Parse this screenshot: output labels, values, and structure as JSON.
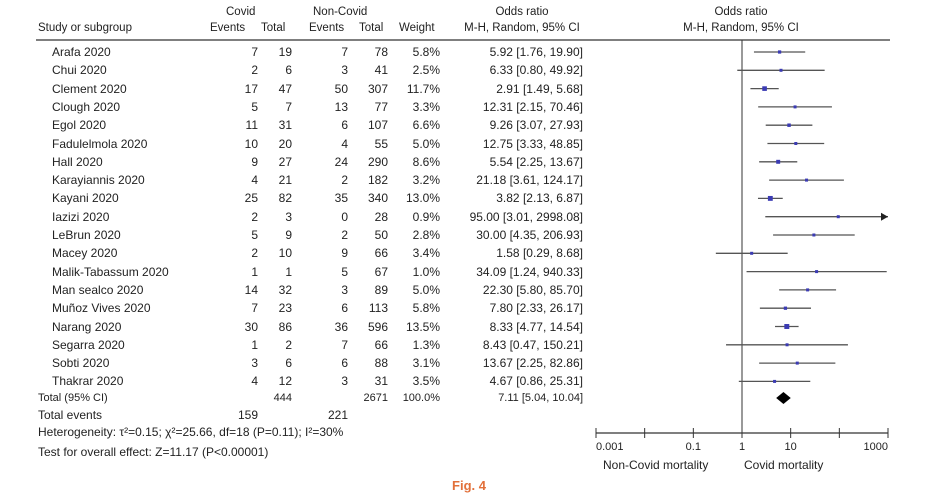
{
  "chart_data": {
    "type": "forest",
    "header": {
      "study_col": "Study or subgroup",
      "group1": "Covid",
      "group2": "Non-Covid",
      "events": "Events",
      "total": "Total",
      "weight": "Weight",
      "or_title": "Odds ratio",
      "or_sub": "M-H, Random, 95% CI"
    },
    "studies": [
      {
        "name": "Arafa 2020",
        "e1": "7",
        "t1": "19",
        "e2": "7",
        "t2": "78",
        "weight": "5.8%",
        "ci_text": "5.92 [1.76, 19.90]",
        "or": 5.92,
        "lo": 1.76,
        "hi": 19.9,
        "w": 5.8
      },
      {
        "name": "Chui 2020",
        "e1": "2",
        "t1": "6",
        "e2": "3",
        "t2": "41",
        "weight": "2.5%",
        "ci_text": "6.33 [0.80, 49.92]",
        "or": 6.33,
        "lo": 0.8,
        "hi": 49.92,
        "w": 2.5
      },
      {
        "name": "Clement 2020",
        "e1": "17",
        "t1": "47",
        "e2": "50",
        "t2": "307",
        "weight": "11.7%",
        "ci_text": "2.91 [1.49, 5.68]",
        "or": 2.91,
        "lo": 1.49,
        "hi": 5.68,
        "w": 11.7
      },
      {
        "name": "Clough 2020",
        "e1": "5",
        "t1": "7",
        "e2": "13",
        "t2": "77",
        "weight": "3.3%",
        "ci_text": "12.31 [2.15, 70.46]",
        "or": 12.31,
        "lo": 2.15,
        "hi": 70.46,
        "w": 3.3
      },
      {
        "name": "Egol 2020",
        "e1": "11",
        "t1": "31",
        "e2": "6",
        "t2": "107",
        "weight": "6.6%",
        "ci_text": "9.26 [3.07, 27.93]",
        "or": 9.26,
        "lo": 3.07,
        "hi": 27.93,
        "w": 6.6
      },
      {
        "name": "Fadulelmola 2020",
        "e1": "10",
        "t1": "20",
        "e2": "4",
        "t2": "55",
        "weight": "5.0%",
        "ci_text": "12.75 [3.33, 48.85]",
        "or": 12.75,
        "lo": 3.33,
        "hi": 48.85,
        "w": 5.0
      },
      {
        "name": "Hall 2020",
        "e1": "9",
        "t1": "27",
        "e2": "24",
        "t2": "290",
        "weight": "8.6%",
        "ci_text": "5.54 [2.25, 13.67]",
        "or": 5.54,
        "lo": 2.25,
        "hi": 13.67,
        "w": 8.6
      },
      {
        "name": "Karayiannis 2020",
        "e1": "4",
        "t1": "21",
        "e2": "2",
        "t2": "182",
        "weight": "3.2%",
        "ci_text": "21.18 [3.61, 124.17]",
        "or": 21.18,
        "lo": 3.61,
        "hi": 124.17,
        "w": 3.2
      },
      {
        "name": "Kayani 2020",
        "e1": "25",
        "t1": "82",
        "e2": "35",
        "t2": "340",
        "weight": "13.0%",
        "ci_text": "3.82 [2.13, 6.87]",
        "or": 3.82,
        "lo": 2.13,
        "hi": 6.87,
        "w": 13.0
      },
      {
        "name": "Iazizi 2020",
        "e1": "2",
        "t1": "3",
        "e2": "0",
        "t2": "28",
        "weight": "0.9%",
        "ci_text": "95.00 [3.01, 2998.08]",
        "or": 95.0,
        "lo": 3.01,
        "hi": 2998.08,
        "w": 0.9
      },
      {
        "name": "LeBrun 2020",
        "e1": "5",
        "t1": "9",
        "e2": "2",
        "t2": "50",
        "weight": "2.8%",
        "ci_text": "30.00 [4.35, 206.93]",
        "or": 30.0,
        "lo": 4.35,
        "hi": 206.93,
        "w": 2.8
      },
      {
        "name": "Macey 2020",
        "e1": "2",
        "t1": "10",
        "e2": "9",
        "t2": "66",
        "weight": "3.4%",
        "ci_text": "1.58 [0.29, 8.68]",
        "or": 1.58,
        "lo": 0.29,
        "hi": 8.68,
        "w": 3.4
      },
      {
        "name": "Malik-Tabassum 2020",
        "e1": "1",
        "t1": "1",
        "e2": "5",
        "t2": "67",
        "weight": "1.0%",
        "ci_text": "34.09 [1.24, 940.33]",
        "or": 34.09,
        "lo": 1.24,
        "hi": 940.33,
        "w": 1.0
      },
      {
        "name": "Man sealco 2020",
        "e1": "14",
        "t1": "32",
        "e2": "3",
        "t2": "89",
        "weight": "5.0%",
        "ci_text": "22.30 [5.80, 85.70]",
        "or": 22.3,
        "lo": 5.8,
        "hi": 85.7,
        "w": 5.0
      },
      {
        "name": "Muñoz Vives 2020",
        "e1": "7",
        "t1": "23",
        "e2": "6",
        "t2": "113",
        "weight": "5.8%",
        "ci_text": "7.80 [2.33, 26.17]",
        "or": 7.8,
        "lo": 2.33,
        "hi": 26.17,
        "w": 5.8
      },
      {
        "name": "Narang 2020",
        "e1": "30",
        "t1": "86",
        "e2": "36",
        "t2": "596",
        "weight": "13.5%",
        "ci_text": "8.33 [4.77, 14.54]",
        "or": 8.33,
        "lo": 4.77,
        "hi": 14.54,
        "w": 13.5
      },
      {
        "name": "Segarra 2020",
        "e1": "1",
        "t1": "2",
        "e2": "7",
        "t2": "66",
        "weight": "1.3%",
        "ci_text": "8.43 [0.47, 150.21]",
        "or": 8.43,
        "lo": 0.47,
        "hi": 150.21,
        "w": 1.3
      },
      {
        "name": "Sobti 2020",
        "e1": "3",
        "t1": "6",
        "e2": "6",
        "t2": "88",
        "weight": "3.1%",
        "ci_text": "13.67 [2.25, 82.86]",
        "or": 13.67,
        "lo": 2.25,
        "hi": 82.86,
        "w": 3.1
      },
      {
        "name": "Thakrar 2020",
        "e1": "4",
        "t1": "12",
        "e2": "3",
        "t2": "31",
        "weight": "3.5%",
        "ci_text": "4.67 [0.86, 25.31]",
        "or": 4.67,
        "lo": 0.86,
        "hi": 25.31,
        "w": 3.5
      }
    ],
    "total": {
      "label": "Total (95% CI)",
      "t1": "444",
      "t2": "2671",
      "weight": "100.0%",
      "ci_text": "7.11 [5.04, 10.04]",
      "or": 7.11,
      "lo": 5.04,
      "hi": 10.04
    },
    "total_events": {
      "label": "Total events",
      "e1": "159",
      "e2": "221"
    },
    "heterogeneity": "Heterogeneity: τ²=0.15; χ²=25.66, df=18 (P=0.11); I²=30%",
    "overall_test": "Test for overall effect: Z=11.17 (P<0.00001)",
    "axis": {
      "scale": "log",
      "xlim": [
        0.001,
        1000
      ],
      "ticks": [
        {
          "v": 0.001,
          "label": "0.001"
        },
        {
          "v": 0.1,
          "label": "0.1"
        },
        {
          "v": 1,
          "label": "1"
        },
        {
          "v": 10,
          "label": "10"
        },
        {
          "v": 1000,
          "label": "1000"
        }
      ]
    },
    "axis_left_label": "Non-Covid mortality",
    "axis_right_label": "Covid mortality",
    "caption": "Fig. 4"
  },
  "colors": {
    "marker": "#3b3bb3",
    "line": "#555555",
    "diamond": "#000000",
    "caption": "#e2703a"
  }
}
